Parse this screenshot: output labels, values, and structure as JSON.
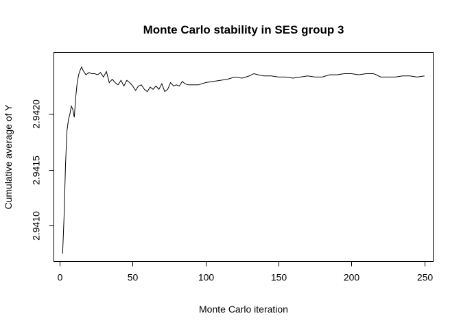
{
  "chart_data": {
    "type": "line",
    "title": "Monte Carlo stability in SES group 3",
    "xlabel": "Monte Carlo iteration",
    "ylabel": "Cumulative average of Y",
    "xlim": [
      -4,
      256
    ],
    "ylim": [
      2.94068,
      2.94255
    ],
    "xticks": [
      0,
      50,
      100,
      150,
      200,
      250
    ],
    "yticks": [
      2.941,
      2.9415,
      2.942
    ],
    "ytick_labels": [
      "2.9410",
      "2.9415",
      "2.9420"
    ],
    "grid": false,
    "legend": "none",
    "color": "#000000",
    "series": [
      {
        "x": [
          2,
          3,
          4,
          5,
          6,
          7,
          8,
          9,
          10,
          11,
          12,
          13,
          14,
          15,
          16,
          18,
          20,
          22,
          24,
          26,
          28,
          30,
          32,
          34,
          36,
          38,
          40,
          42,
          44,
          46,
          48,
          50,
          52,
          54,
          56,
          58,
          60,
          62,
          64,
          66,
          68,
          70,
          72,
          74,
          76,
          78,
          80,
          82,
          84,
          86,
          88,
          90,
          95,
          100,
          105,
          110,
          115,
          120,
          125,
          130,
          133,
          136,
          140,
          145,
          150,
          155,
          160,
          165,
          170,
          175,
          180,
          185,
          190,
          195,
          200,
          205,
          210,
          215,
          217,
          220,
          225,
          230,
          235,
          240,
          245,
          250
        ],
        "values": [
          2.94075,
          2.94108,
          2.94155,
          2.94185,
          2.94195,
          2.942,
          2.94207,
          2.94204,
          2.94197,
          2.94215,
          2.94228,
          2.94235,
          2.94239,
          2.94242,
          2.94239,
          2.94235,
          2.94237,
          2.94236,
          2.94236,
          2.94235,
          2.94237,
          2.94233,
          2.94238,
          2.94228,
          2.94231,
          2.94228,
          2.94226,
          2.9423,
          2.94225,
          2.9423,
          2.94228,
          2.94225,
          2.94221,
          2.94225,
          2.94226,
          2.94222,
          2.9422,
          2.94224,
          2.94222,
          2.94225,
          2.94222,
          2.94227,
          2.9422,
          2.94222,
          2.94228,
          2.94225,
          2.94226,
          2.94225,
          2.94229,
          2.94227,
          2.94226,
          2.94226,
          2.94226,
          2.94228,
          2.94229,
          2.9423,
          2.94231,
          2.94233,
          2.94232,
          2.94234,
          2.94236,
          2.94235,
          2.94234,
          2.94234,
          2.94233,
          2.94233,
          2.94232,
          2.94233,
          2.94234,
          2.94233,
          2.94233,
          2.94235,
          2.94235,
          2.94236,
          2.94236,
          2.94235,
          2.94236,
          2.94236,
          2.94235,
          2.94233,
          2.94233,
          2.94233,
          2.94234,
          2.94234,
          2.94233,
          2.94234
        ]
      }
    ]
  }
}
